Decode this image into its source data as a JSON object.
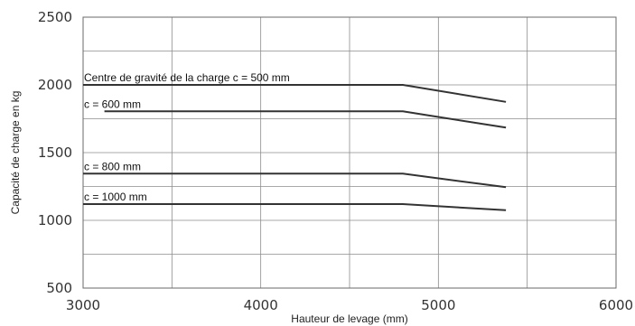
{
  "chart_data": {
    "type": "line",
    "xlabel": "Hauteur de levage (mm)",
    "ylabel": "Capacité de charge en kg",
    "xlim": [
      3000,
      6000
    ],
    "ylim": [
      500,
      2500
    ],
    "x_ticks": [
      3000,
      4000,
      5000,
      6000
    ],
    "y_ticks": [
      500,
      1000,
      1500,
      2000,
      2500
    ],
    "x_grid_step": 500,
    "y_grid_step": 250,
    "grid": true,
    "series": [
      {
        "name": "Centre de gravité de la charge c = 500 mm",
        "x": [
          3000,
          4800,
          5380
        ],
        "y": [
          2000,
          2000,
          1875
        ]
      },
      {
        "name": "c = 600 mm",
        "x": [
          3120,
          4800,
          5380
        ],
        "y": [
          1805,
          1805,
          1685
        ]
      },
      {
        "name": "c = 800 mm",
        "x": [
          3000,
          4800,
          5380
        ],
        "y": [
          1345,
          1345,
          1245
        ]
      },
      {
        "name": "c = 1000 mm",
        "x": [
          3000,
          4800,
          5380
        ],
        "y": [
          1120,
          1120,
          1075
        ]
      }
    ]
  }
}
